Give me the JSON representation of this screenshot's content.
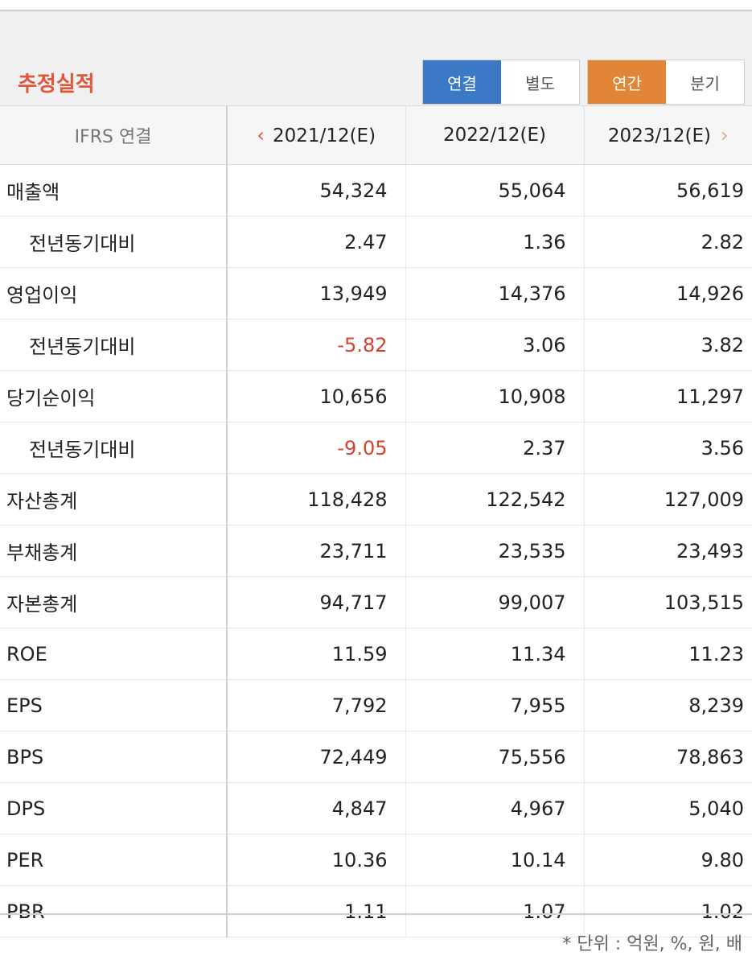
{
  "header": {
    "title": "추정실적",
    "toggle1": {
      "options": [
        "연결",
        "별도"
      ],
      "active": "연결",
      "active_color": "#3b78c5"
    },
    "toggle2": {
      "options": [
        "연간",
        "분기"
      ],
      "active": "연간",
      "active_color": "#e28536"
    }
  },
  "table": {
    "label_header": "IFRS 연결",
    "columns": [
      "2021/12(E)",
      "2022/12(E)",
      "2023/12(E)"
    ],
    "nav_prev": "‹",
    "nav_next": "›",
    "rows": [
      {
        "label": "매출액",
        "sub": false,
        "values": [
          "54,324",
          "55,064",
          "56,619"
        ]
      },
      {
        "label": "전년동기대비",
        "sub": true,
        "values": [
          "2.47",
          "1.36",
          "2.82"
        ]
      },
      {
        "label": "영업이익",
        "sub": false,
        "values": [
          "13,949",
          "14,376",
          "14,926"
        ]
      },
      {
        "label": "전년동기대비",
        "sub": true,
        "values": [
          "-5.82",
          "3.06",
          "3.82"
        ]
      },
      {
        "label": "당기순이익",
        "sub": false,
        "values": [
          "10,656",
          "10,908",
          "11,297"
        ]
      },
      {
        "label": "전년동기대비",
        "sub": true,
        "values": [
          "-9.05",
          "2.37",
          "3.56"
        ]
      },
      {
        "label": "자산총계",
        "sub": false,
        "values": [
          "118,428",
          "122,542",
          "127,009"
        ]
      },
      {
        "label": "부채총계",
        "sub": false,
        "values": [
          "23,711",
          "23,535",
          "23,493"
        ]
      },
      {
        "label": "자본총계",
        "sub": false,
        "values": [
          "94,717",
          "99,007",
          "103,515"
        ]
      },
      {
        "label": "ROE",
        "sub": false,
        "values": [
          "11.59",
          "11.34",
          "11.23"
        ]
      },
      {
        "label": "EPS",
        "sub": false,
        "values": [
          "7,792",
          "7,955",
          "8,239"
        ]
      },
      {
        "label": "BPS",
        "sub": false,
        "values": [
          "72,449",
          "75,556",
          "78,863"
        ]
      },
      {
        "label": "DPS",
        "sub": false,
        "values": [
          "4,847",
          "4,967",
          "5,040"
        ]
      },
      {
        "label": "PER",
        "sub": false,
        "values": [
          "10.36",
          "10.14",
          "9.80"
        ]
      },
      {
        "label": "PBR",
        "sub": false,
        "values": [
          "1.11",
          "1.07",
          "1.02"
        ]
      }
    ],
    "negative_color": "#d6402e"
  },
  "footer": {
    "unit_note": "* 단위 : 억원, %, 원, 배"
  }
}
